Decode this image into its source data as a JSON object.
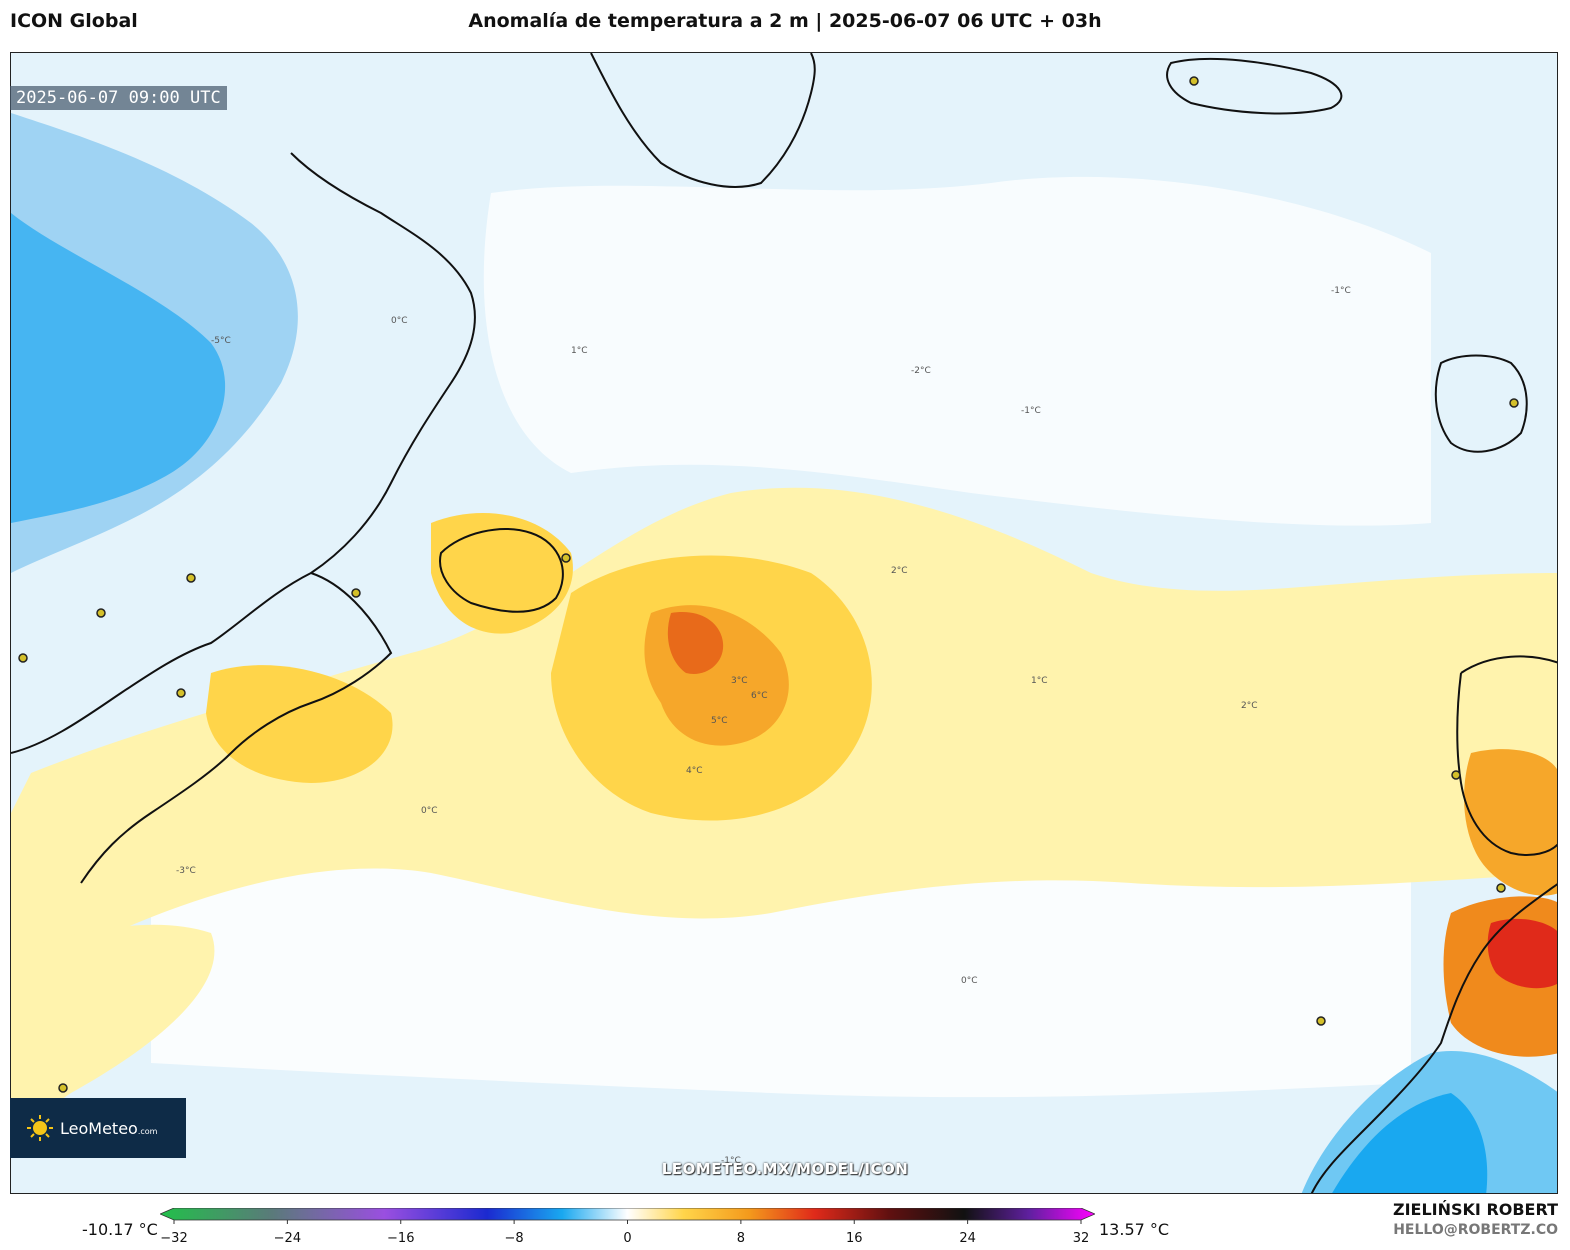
{
  "header": {
    "model": "ICON Global",
    "title": "Anomalía de temperatura a 2 m | 2025-06-07 06 UTC + 03h"
  },
  "map": {
    "valid_time": "2025-06-07 09:00 UTC",
    "contour_labels": [
      "0°C",
      "-1°C",
      "1°C",
      "2°C",
      "-2°C",
      "3°C",
      "-3°C",
      "4°C",
      "5°C",
      "-5°C",
      "6°C"
    ],
    "watermark": "LEOMETEO.MX/MODEL/ICON",
    "logo": {
      "main": "LeoMeteo",
      "suffix": ".com"
    }
  },
  "colorbar": {
    "min_label": "-10.17 °C",
    "max_label": "13.57 °C",
    "ticks": [
      "−32",
      "−24",
      "−16",
      "−8",
      "0",
      "8",
      "16",
      "24",
      "32"
    ],
    "range": [
      -32,
      36
    ],
    "colors": {
      "very_cold": "#22c04a",
      "cold": "#3a6fe0",
      "cool": "#19a8f0",
      "slightly_cool": "#cbe8f7",
      "neutral": "#ffffff",
      "slightly_warm": "#fff2a8",
      "warm": "#ffd54a",
      "hot": "#f49a1c",
      "very_hot": "#e63a1f",
      "extreme": "#ff00ff"
    }
  },
  "credit": {
    "name": "ZIELIŃSKI ROBERT",
    "email": "HELLO@ROBERTZ.CO"
  }
}
